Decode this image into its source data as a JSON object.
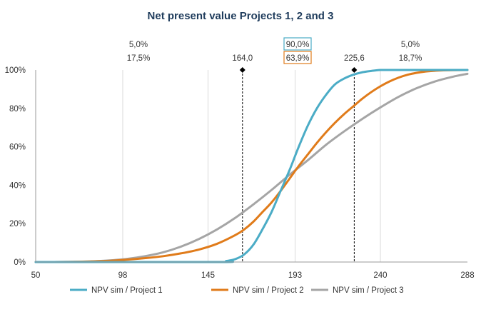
{
  "chart_data": {
    "type": "line",
    "title": "Net present value Projects 1, 2 and 3",
    "xlim": [
      50,
      288
    ],
    "ylim": [
      0,
      100
    ],
    "x_ticks": [
      "50",
      "98",
      "145",
      "193",
      "240",
      "288"
    ],
    "y_ticks": [
      "0%",
      "20%",
      "40%",
      "60%",
      "80%",
      "100%"
    ],
    "grid": "vertical",
    "legend_position": "bottom",
    "series": [
      {
        "name": "NPV sim / Project 1",
        "color": "#4bacc6",
        "x": [
          50,
          150,
          155,
          160,
          165,
          170,
          175,
          180,
          185,
          190,
          195,
          200,
          205,
          210,
          215,
          220,
          225,
          230,
          235,
          240,
          245,
          288
        ],
        "values": [
          0,
          0,
          0.5,
          1.5,
          4,
          9,
          17,
          26,
          37,
          48,
          60,
          71,
          80,
          87,
          92.5,
          95.5,
          97.5,
          98.8,
          99.5,
          100,
          100,
          100
        ]
      },
      {
        "name": "NPV sim / Project 2",
        "color": "#e07b1a",
        "x": [
          50,
          60,
          70,
          80,
          90,
          100,
          110,
          120,
          130,
          140,
          150,
          160,
          165,
          170,
          175,
          180,
          185,
          190,
          195,
          200,
          205,
          210,
          215,
          220,
          225,
          230,
          235,
          240,
          245,
          250,
          255,
          260,
          265,
          270,
          275,
          288
        ],
        "values": [
          0,
          0,
          0.1,
          0.3,
          0.6,
          1.2,
          2,
          3,
          4.5,
          6.5,
          9.5,
          14,
          17,
          21,
          26,
          31,
          37,
          43.5,
          50,
          56,
          62,
          67.5,
          72.5,
          77,
          81,
          85,
          88.5,
          91.5,
          94,
          96,
          97.5,
          98.5,
          99.2,
          99.6,
          99.8,
          100
        ]
      },
      {
        "name": "NPV sim / Project 3",
        "color": "#a5a5a5",
        "x": [
          50,
          60,
          70,
          80,
          90,
          100,
          110,
          120,
          130,
          140,
          150,
          160,
          170,
          180,
          190,
          200,
          210,
          220,
          230,
          240,
          250,
          260,
          270,
          280,
          288
        ],
        "values": [
          0,
          0,
          0.1,
          0.3,
          0.8,
          1.6,
          3,
          5,
          8,
          12,
          17,
          23,
          30,
          37.5,
          45.5,
          53,
          61,
          68,
          74.5,
          80.5,
          86,
          90.5,
          94,
          96.5,
          98
        ]
      }
    ],
    "markers": [
      {
        "x": 164.0,
        "label": "164,0"
      },
      {
        "x": 225.6,
        "label": "225,6"
      }
    ],
    "left_annotation": {
      "top": "5,0%",
      "bottom": "17,5%"
    },
    "center_annotation": {
      "top": "90,0%",
      "bottom": "63,9%",
      "top_color": "#4bacc6",
      "bottom_color": "#e07b1a"
    },
    "right_annotation": {
      "top": "5,0%",
      "bottom": "18,7%"
    }
  }
}
